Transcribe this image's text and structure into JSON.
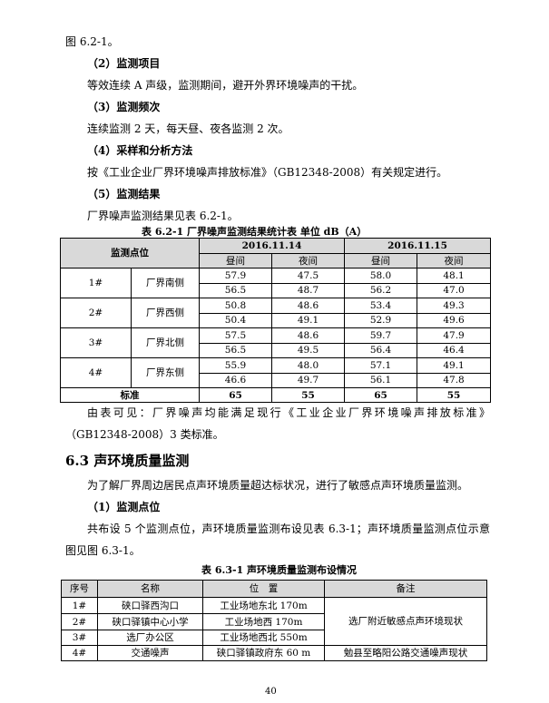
{
  "body": {
    "l1": "图 6.2-1。",
    "s2": "（2）监测项目",
    "p2": "等效连续 A 声级，监测期间，避开外界环境噪声的干扰。",
    "s3": "（3）监测频次",
    "p3": "连续监测 2 天，每天昼、夜各监测 2 次。",
    "s4": "（4）采样和分析方法",
    "p4": "按《工业企业厂界环境噪声排放标准》（GB12348-2008）有关规定进行。",
    "s5": "（5）监测结果",
    "p5": "厂界噪声监测结果见表 6.2-1。",
    "conc1": "由表可见：厂界噪声均能满足现行《工业企业厂界环境噪声排放标准》",
    "conc2": "（GB12348-2008）3 类标准。",
    "heading": "6.3  声环境质量监测",
    "p6": "为了解厂界周边居民点声环境质量超达标状况，进行了敏感点声环境质量监测。",
    "s6": "（1）监测点位",
    "p7a": "共布设 5 个监测点位，声环境质量监测布设见表 6.3-1；声环境质量监测点位示意",
    "p7b": "图见图 6.3-1。",
    "page_number": "40"
  },
  "table1": {
    "caption": "表 6.2-1    厂界噪声监测结果统计表          单位 dB（A）",
    "col_point": "监测点位",
    "dates": [
      "2016.11.14",
      "2016.11.15"
    ],
    "day": "昼间",
    "night": "夜间",
    "rows": [
      {
        "id": "1#",
        "loc": "厂界南侧",
        "v": [
          [
            "57.9",
            "47.5",
            "58.0",
            "48.1"
          ],
          [
            "56.5",
            "48.7",
            "56.2",
            "47.0"
          ]
        ]
      },
      {
        "id": "2#",
        "loc": "厂界西侧",
        "v": [
          [
            "50.8",
            "48.6",
            "53.4",
            "49.3"
          ],
          [
            "50.4",
            "49.1",
            "52.9",
            "49.6"
          ]
        ]
      },
      {
        "id": "3#",
        "loc": "厂界北侧",
        "v": [
          [
            "57.5",
            "48.6",
            "59.7",
            "47.9"
          ],
          [
            "56.5",
            "49.5",
            "56.4",
            "46.4"
          ]
        ]
      },
      {
        "id": "4#",
        "loc": "厂界东侧",
        "v": [
          [
            "55.9",
            "48.0",
            "57.1",
            "49.1"
          ],
          [
            "46.6",
            "49.7",
            "56.1",
            "47.8"
          ]
        ]
      }
    ],
    "standard_label": "标准",
    "standard": [
      "65",
      "55",
      "65",
      "55"
    ]
  },
  "table2": {
    "caption": "表 6.3-1    声环境质量监测布设情况",
    "headers": [
      "序号",
      "名称",
      "位　置",
      "备注"
    ],
    "rows": [
      {
        "no": "1#",
        "name": "硖口驿西沟口",
        "pos": "工业场地东北 170m"
      },
      {
        "no": "2#",
        "name": "硖口驿镇中心小学",
        "pos": "工业场地西 170m"
      },
      {
        "no": "3#",
        "name": "选厂办公区",
        "pos": "工业场地西北 550m"
      },
      {
        "no": "4#",
        "name": "交通噪声",
        "pos": "硖口驿镇政府东 60 m",
        "note": "勉县至略阳公路交通噪声现状"
      }
    ],
    "note_merged": "选厂附近敏感点声环境现状"
  }
}
